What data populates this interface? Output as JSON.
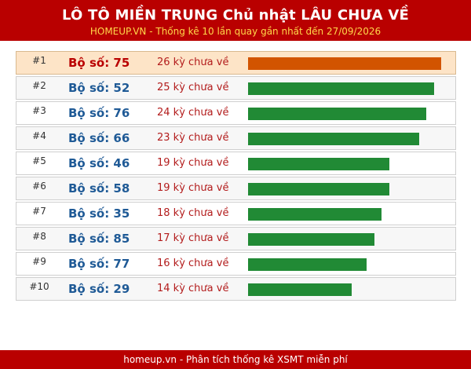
{
  "header": {
    "title": "LÔ TÔ MIỀN TRUNG Chủ nhật LÂU CHƯA VỀ",
    "subtitle": "HOMEUP.VN - Thống kê 10 lần quay gần nhất đến 27/09/2026"
  },
  "max_days": 26,
  "rows": [
    {
      "rank": "#1",
      "number": "Bộ số: 75",
      "days_label": "26 kỳ chưa về",
      "days": 26
    },
    {
      "rank": "#2",
      "number": "Bộ số: 52",
      "days_label": "25 kỳ chưa về",
      "days": 25
    },
    {
      "rank": "#3",
      "number": "Bộ số: 76",
      "days_label": "24 kỳ chưa về",
      "days": 24
    },
    {
      "rank": "#4",
      "number": "Bộ số: 66",
      "days_label": "23 kỳ chưa về",
      "days": 23
    },
    {
      "rank": "#5",
      "number": "Bộ số: 46",
      "days_label": "19 kỳ chưa về",
      "days": 19
    },
    {
      "rank": "#6",
      "number": "Bộ số: 58",
      "days_label": "19 kỳ chưa về",
      "days": 19
    },
    {
      "rank": "#7",
      "number": "Bộ số: 35",
      "days_label": "18 kỳ chưa về",
      "days": 18
    },
    {
      "rank": "#8",
      "number": "Bộ số: 85",
      "days_label": "17 kỳ chưa về",
      "days": 17
    },
    {
      "rank": "#9",
      "number": "Bộ số: 77",
      "days_label": "16 kỳ chưa về",
      "days": 16
    },
    {
      "rank": "#10",
      "number": "Bộ số: 29",
      "days_label": "14 kỳ chưa về",
      "days": 14
    }
  ],
  "colors": {
    "header_bg": "#b90000",
    "top_bar": "#d25400",
    "bar": "#218a35",
    "top_row_bg": "#fde4c7"
  },
  "footer": {
    "text": "homeup.vn - Phân tích thống kê XSMT miễn phí"
  }
}
